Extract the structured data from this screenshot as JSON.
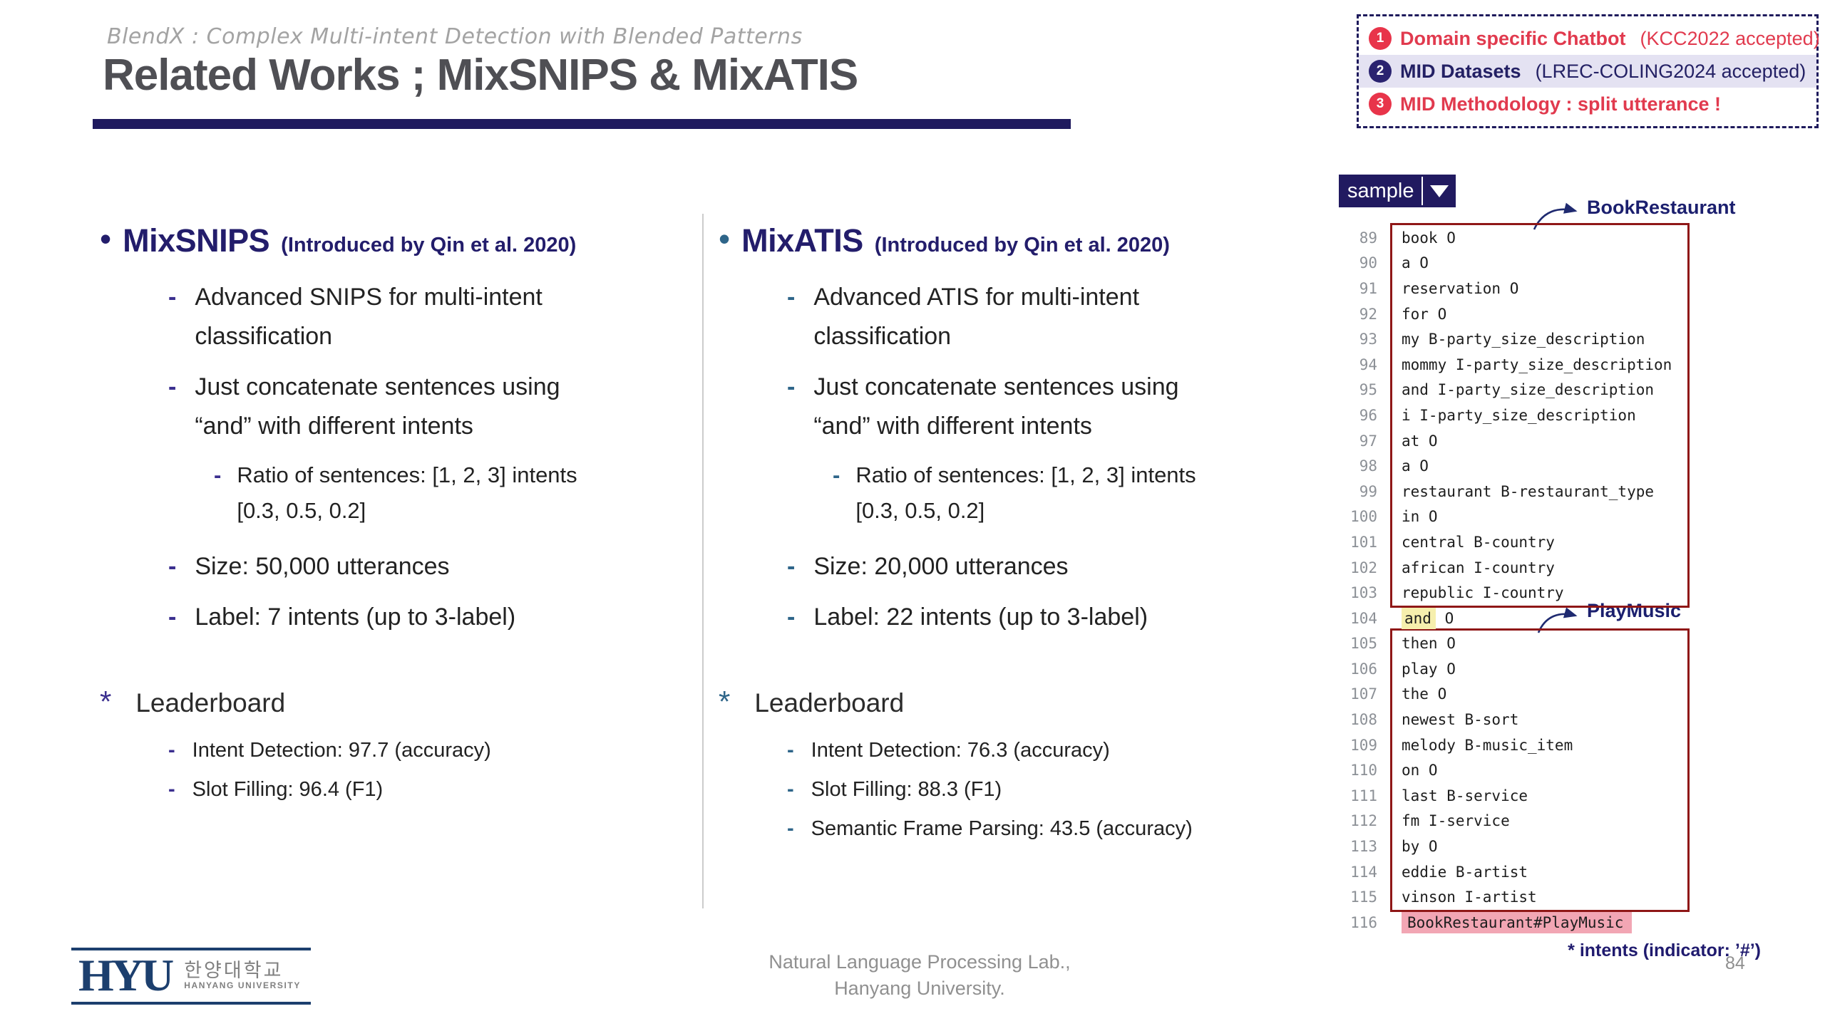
{
  "slide": {
    "subtitle": "BlendX : Complex Multi-intent Detection with Blended Patterns",
    "title": "Related Works ; MixSNIPS & MixATIS",
    "page_number": "84",
    "footer_line1": "Natural Language Processing Lab.,",
    "footer_line2": "Hanyang University."
  },
  "agenda": {
    "items": [
      {
        "num": "1",
        "bold": "Domain specific Chatbot",
        "rest": "(KCC2022 accepted)"
      },
      {
        "num": "2",
        "bold": "MID Datasets",
        "rest": "(LREC-COLING2024 accepted)"
      },
      {
        "num": "3",
        "bold": "MID Methodology : split utterance !",
        "rest": ""
      }
    ]
  },
  "columns": {
    "left": {
      "bullet_glyph": "•",
      "heading": "MixSNIPS",
      "heading_suffix": "(Introduced by Qin et al. 2020)",
      "bullets_a": [
        {
          "d": "-",
          "t": "Advanced SNIPS for multi-intent classification"
        },
        {
          "d": "-",
          "t": "Just concatenate sentences using “and” with different intents"
        }
      ],
      "sub_dash": "-",
      "sub_bullet": "Ratio of sentences: [1, 2, 3] intents [0.3, 0.5, 0.2]",
      "bullets_b": [
        {
          "d": "-",
          "t": "Size: 50,000 utterances"
        },
        {
          "d": "-",
          "t": "Label: 7 intents (up to 3-label)"
        }
      ],
      "star_glyph": "*",
      "leaderboard_label": "Leaderboard",
      "leaderboard_items": [
        {
          "d": "-",
          "t": "Intent Detection: 97.7 (accuracy)"
        },
        {
          "d": "-",
          "t": "Slot Filling: 96.4 (F1)"
        }
      ]
    },
    "mid": {
      "bullet_glyph": "•",
      "heading": "MixATIS",
      "heading_suffix": "(Introduced by Qin et al. 2020)",
      "bullets_a": [
        {
          "d": "-",
          "t": "Advanced ATIS for multi-intent classification"
        },
        {
          "d": "-",
          "t": "Just concatenate sentences using “and” with different intents"
        }
      ],
      "sub_dash": "-",
      "sub_bullet": "Ratio of sentences: [1, 2, 3] intents [0.3, 0.5, 0.2]",
      "bullets_b": [
        {
          "d": "-",
          "t": "Size: 20,000 utterances"
        },
        {
          "d": "-",
          "t": "Label: 22 intents (up to 3-label)"
        }
      ],
      "star_glyph": "*",
      "leaderboard_label": "Leaderboard",
      "leaderboard_items": [
        {
          "d": "-",
          "t": "Intent Detection: 76.3 (accuracy)"
        },
        {
          "d": "-",
          "t": "Slot Filling: 88.3 (F1)"
        },
        {
          "d": "-",
          "t": "Semantic Frame Parsing: 43.5 (accuracy)"
        }
      ]
    }
  },
  "code_panel": {
    "chip_label": "sample",
    "box1_label": "BookRestaurant",
    "box2_label": "PlayMusic",
    "box1_lines": [
      {
        "n": "89",
        "t": "book O"
      },
      {
        "n": "90",
        "t": "a O"
      },
      {
        "n": "91",
        "t": "reservation O"
      },
      {
        "n": "92",
        "t": "for O"
      },
      {
        "n": "93",
        "t": "my B-party_size_description"
      },
      {
        "n": "94",
        "t": "mommy I-party_size_description"
      },
      {
        "n": "95",
        "t": "and I-party_size_description"
      },
      {
        "n": "96",
        "t": "i I-party_size_description"
      },
      {
        "n": "97",
        "t": "at O"
      },
      {
        "n": "98",
        "t": "a O"
      },
      {
        "n": "99",
        "t": "restaurant B-restaurant_type"
      },
      {
        "n": "100",
        "t": "in O"
      },
      {
        "n": "101",
        "t": "central B-country"
      },
      {
        "n": "102",
        "t": "african I-country"
      },
      {
        "n": "103",
        "t": "republic I-country"
      }
    ],
    "connector_line": {
      "num": "104",
      "word": "and",
      "tag": " O"
    },
    "box2_lines": [
      {
        "n": "105",
        "t": "then O"
      },
      {
        "n": "106",
        "t": "play O"
      },
      {
        "n": "107",
        "t": "the O"
      },
      {
        "n": "108",
        "t": "newest B-sort"
      },
      {
        "n": "109",
        "t": "melody B-music_item"
      },
      {
        "n": "110",
        "t": "on O"
      },
      {
        "n": "111",
        "t": "last B-service"
      },
      {
        "n": "112",
        "t": "fm I-service"
      },
      {
        "n": "113",
        "t": "by O"
      },
      {
        "n": "114",
        "t": "eddie B-artist"
      },
      {
        "n": "115",
        "t": "vinson I-artist"
      }
    ],
    "final_line": {
      "num": "116",
      "text": "BookRestaurant#PlayMusic"
    },
    "footnote": "* intents (indicator: ’#’)"
  },
  "logo": {
    "acronym": "HYU",
    "korean": "한양대학교",
    "english": "HANYANG UNIVERSITY"
  },
  "colors": {
    "navy": "#1f1a5e",
    "red": "#e13a4e",
    "steel_blue": "#2e6589",
    "box_border": "#8f1717",
    "highlight_yellow": "#f6efad",
    "highlight_pink": "#f2a6b4"
  }
}
